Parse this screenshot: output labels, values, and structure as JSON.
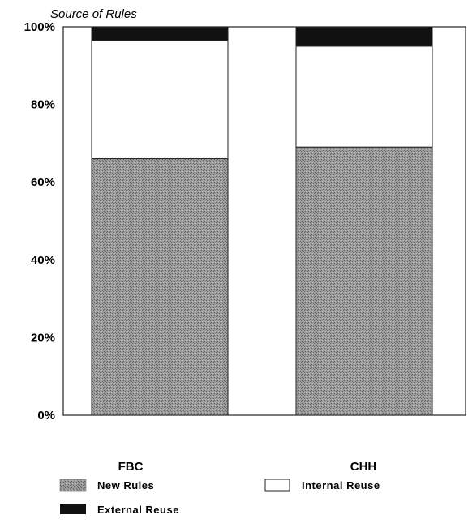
{
  "chart_data": {
    "type": "bar",
    "stacked": true,
    "title": "Source of Rules",
    "categories": [
      "FBC",
      "CHH"
    ],
    "series": [
      {
        "name": "New Rules",
        "values": [
          66,
          69
        ],
        "color": "#8c8c8c"
      },
      {
        "name": "Internal Reuse",
        "values": [
          30.5,
          26
        ],
        "color": "#ffffff"
      },
      {
        "name": "External Reuse",
        "values": [
          3.5,
          5
        ],
        "color": "#111111"
      }
    ],
    "y_ticks": [
      "0%",
      "20%",
      "40%",
      "60%",
      "80%",
      "100%"
    ],
    "ylim": [
      0,
      100
    ],
    "xlabel": "",
    "ylabel": "",
    "grid": false,
    "legend_position": "bottom"
  }
}
